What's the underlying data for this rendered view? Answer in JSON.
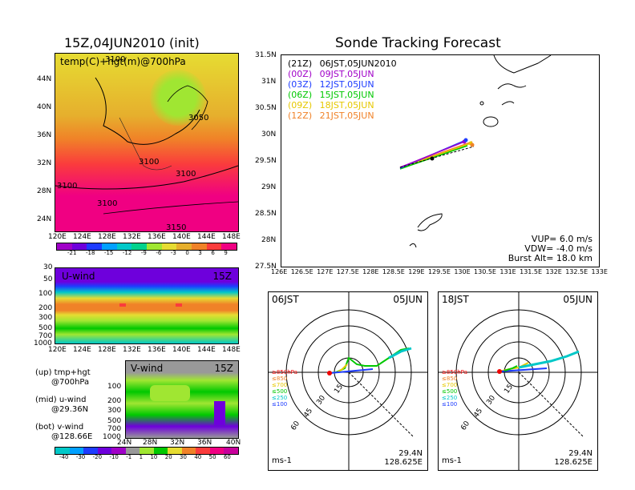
{
  "titles": {
    "left": "15Z,04JUN2010 (init)",
    "right": "Sonde Tracking Forecast"
  },
  "map_left": {
    "label": "temp(C)+hgt(m)@700hPa",
    "yticks": [
      "44N",
      "40N",
      "36N",
      "32N",
      "28N",
      "24N"
    ],
    "xticks": [
      "120E",
      "124E",
      "128E",
      "132E",
      "136E",
      "140E",
      "144E",
      "148E"
    ],
    "contour_labels": [
      "3100",
      "3050",
      "3100",
      "3100",
      "3100",
      "3100",
      "3150"
    ],
    "colorbar": [
      "-21",
      "-18",
      "-15",
      "-12",
      "-9",
      "-6",
      "-3",
      "0",
      "3",
      "6",
      "9"
    ],
    "colors": [
      "#a000c8",
      "#6e00dc",
      "#1e3cff",
      "#00a0ff",
      "#00c8c8",
      "#00d28c",
      "#a0e632",
      "#e6dc32",
      "#e6af2d",
      "#f08228",
      "#fa3c3c",
      "#f00082"
    ]
  },
  "uwind": {
    "label": "U-wind",
    "time": "15Z",
    "yticks": [
      "30",
      "50",
      "100",
      "200",
      "300",
      "500",
      "700",
      "1000"
    ],
    "xticks": [
      "120E",
      "124E",
      "128E",
      "132E",
      "136E",
      "140E",
      "144E",
      "148E"
    ]
  },
  "vwind": {
    "label": "V-wind",
    "time": "15Z",
    "yticks": [
      "100",
      "200",
      "300",
      "500",
      "700",
      "1000"
    ],
    "xticks": [
      "24N",
      "28N",
      "32N",
      "36N",
      "40N"
    ]
  },
  "notes": [
    {
      "a": "(up) tmp+hgt",
      "b": "@700hPa"
    },
    {
      "a": "(mid) u-wind",
      "b": "@29.36N"
    },
    {
      "a": "(bot) v-wind",
      "b": "@128.66E"
    }
  ],
  "wind_colorbar": [
    "-40",
    "-30",
    "-20",
    "-10",
    "-1",
    "1",
    "10",
    "20",
    "30",
    "40",
    "50",
    "60"
  ],
  "track": {
    "yticks": [
      "31.5N",
      "31N",
      "30.5N",
      "30N",
      "29.5N",
      "29N",
      "28.5N",
      "28N",
      "27.5N"
    ],
    "xticks": [
      "126E",
      "126.5E",
      "127E",
      "127.5E",
      "128E",
      "128.5E",
      "129E",
      "129.5E",
      "130E",
      "130.5E",
      "131E",
      "131.5E",
      "132E",
      "132.5E",
      "133E"
    ],
    "legend": [
      {
        "code": "(21Z)",
        "time": "06JST,05JUN2010",
        "color": "#000000"
      },
      {
        "code": "(00Z)",
        "time": "09JST,05JUN",
        "color": "#a000c8"
      },
      {
        "code": "(03Z)",
        "time": "12JST,05JUN",
        "color": "#1e3cff"
      },
      {
        "code": "(06Z)",
        "time": "15JST,05JUN",
        "color": "#00c800"
      },
      {
        "code": "(09Z)",
        "time": "18JST,05JUN",
        "color": "#e6c800"
      },
      {
        "code": "(12Z)",
        "time": "21JST,05JUN",
        "color": "#f08228"
      }
    ],
    "params": [
      "VUP= 6.0 m/s",
      "VDW= -4.0 m/s",
      "Burst Alt= 18.0 km"
    ]
  },
  "hodo": [
    {
      "time": "06JST",
      "date": "05JUN",
      "lat": "29.4N",
      "lon": "128.625E",
      "unit": "ms-1",
      "rings": [
        "15",
        "30",
        "45",
        "60"
      ]
    },
    {
      "time": "18JST",
      "date": "05JUN",
      "lat": "29.4N",
      "lon": "128.625E",
      "unit": "ms-1",
      "rings": [
        "15",
        "30",
        "45",
        "60"
      ]
    }
  ],
  "hodo_levels": [
    {
      "label": "≥850hPa",
      "color": "#f00000"
    },
    {
      "label": "≤850",
      "color": "#f08228"
    },
    {
      "label": "≤700",
      "color": "#e6c800"
    },
    {
      "label": "≤500",
      "color": "#00c800"
    },
    {
      "label": "≤250",
      "color": "#00c8c8"
    },
    {
      "label": "≤100",
      "color": "#1e3cff"
    }
  ]
}
